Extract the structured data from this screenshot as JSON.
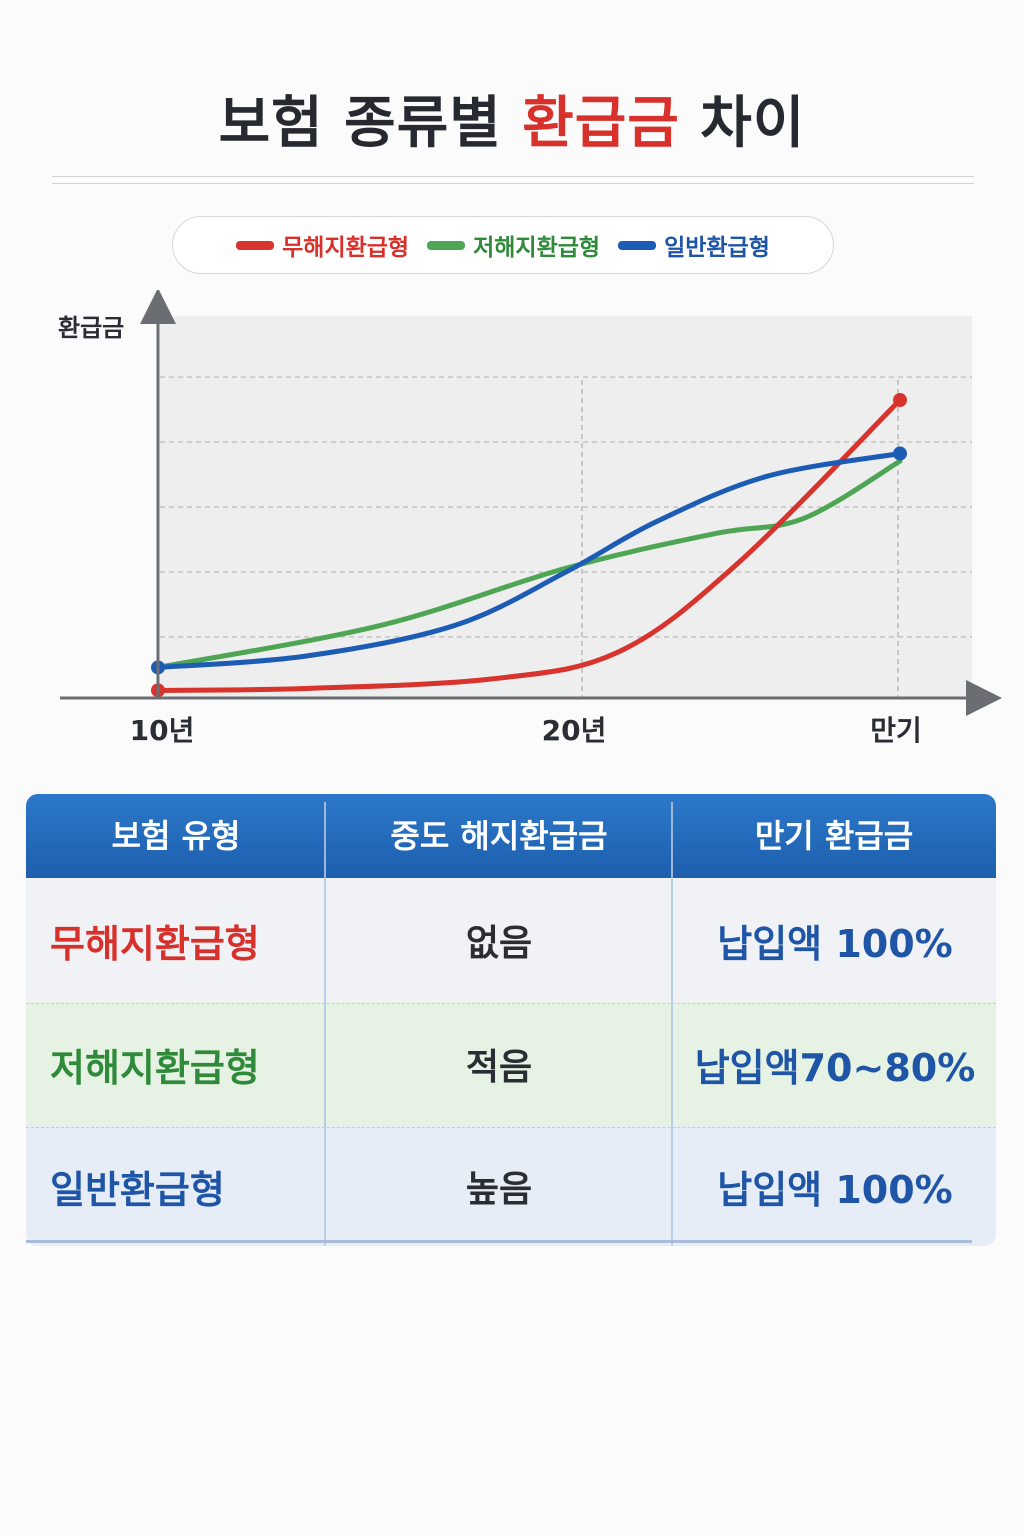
{
  "title": {
    "prefix": "보험 종류별 ",
    "accent": "환급금",
    "suffix": " 차이"
  },
  "colors": {
    "red": "#d8332c",
    "green": "#4ea655",
    "blue": "#1d5cb5"
  },
  "chart_data": {
    "type": "line",
    "ylabel": "환급금",
    "x_ticks": [
      "10년",
      "20년",
      "만기"
    ],
    "legend_position": "top",
    "grid": true,
    "series": [
      {
        "name": "무해지환급형",
        "color": "#d8332c",
        "points": [
          [
            0,
            2
          ],
          [
            20,
            2.5
          ],
          [
            45,
            5
          ],
          [
            62,
            12
          ],
          [
            78,
            35
          ],
          [
            100,
            78
          ]
        ]
      },
      {
        "name": "저해지환급형",
        "color": "#4ea655",
        "points": [
          [
            0,
            8
          ],
          [
            30,
            19
          ],
          [
            55,
            34
          ],
          [
            75,
            43
          ],
          [
            87,
            47
          ],
          [
            100,
            62
          ]
        ]
      },
      {
        "name": "일반환급형",
        "color": "#1d5cb5",
        "points": [
          [
            0,
            8
          ],
          [
            20,
            11
          ],
          [
            40,
            19
          ],
          [
            55,
            33
          ],
          [
            67,
            46
          ],
          [
            82,
            58
          ],
          [
            100,
            64
          ]
        ]
      }
    ]
  },
  "table": {
    "headers": [
      "보험 유형",
      "중도 해지환급금",
      "만기 환급금"
    ],
    "rows": [
      {
        "type": "무해지환급형",
        "midterm": "없음",
        "maturity": "납입액 100%",
        "color": "#d8302b",
        "bg": "#f1f2f5"
      },
      {
        "type": "저해지환급형",
        "midterm": "적음",
        "maturity": "납입액70~80%",
        "color": "#2f8a3a",
        "bg": "#e6f2e4"
      },
      {
        "type": "일반환급형",
        "midterm": "높음",
        "maturity": "납입액 100%",
        "color": "#1f55a6",
        "bg": "#e6edf7"
      }
    ]
  }
}
